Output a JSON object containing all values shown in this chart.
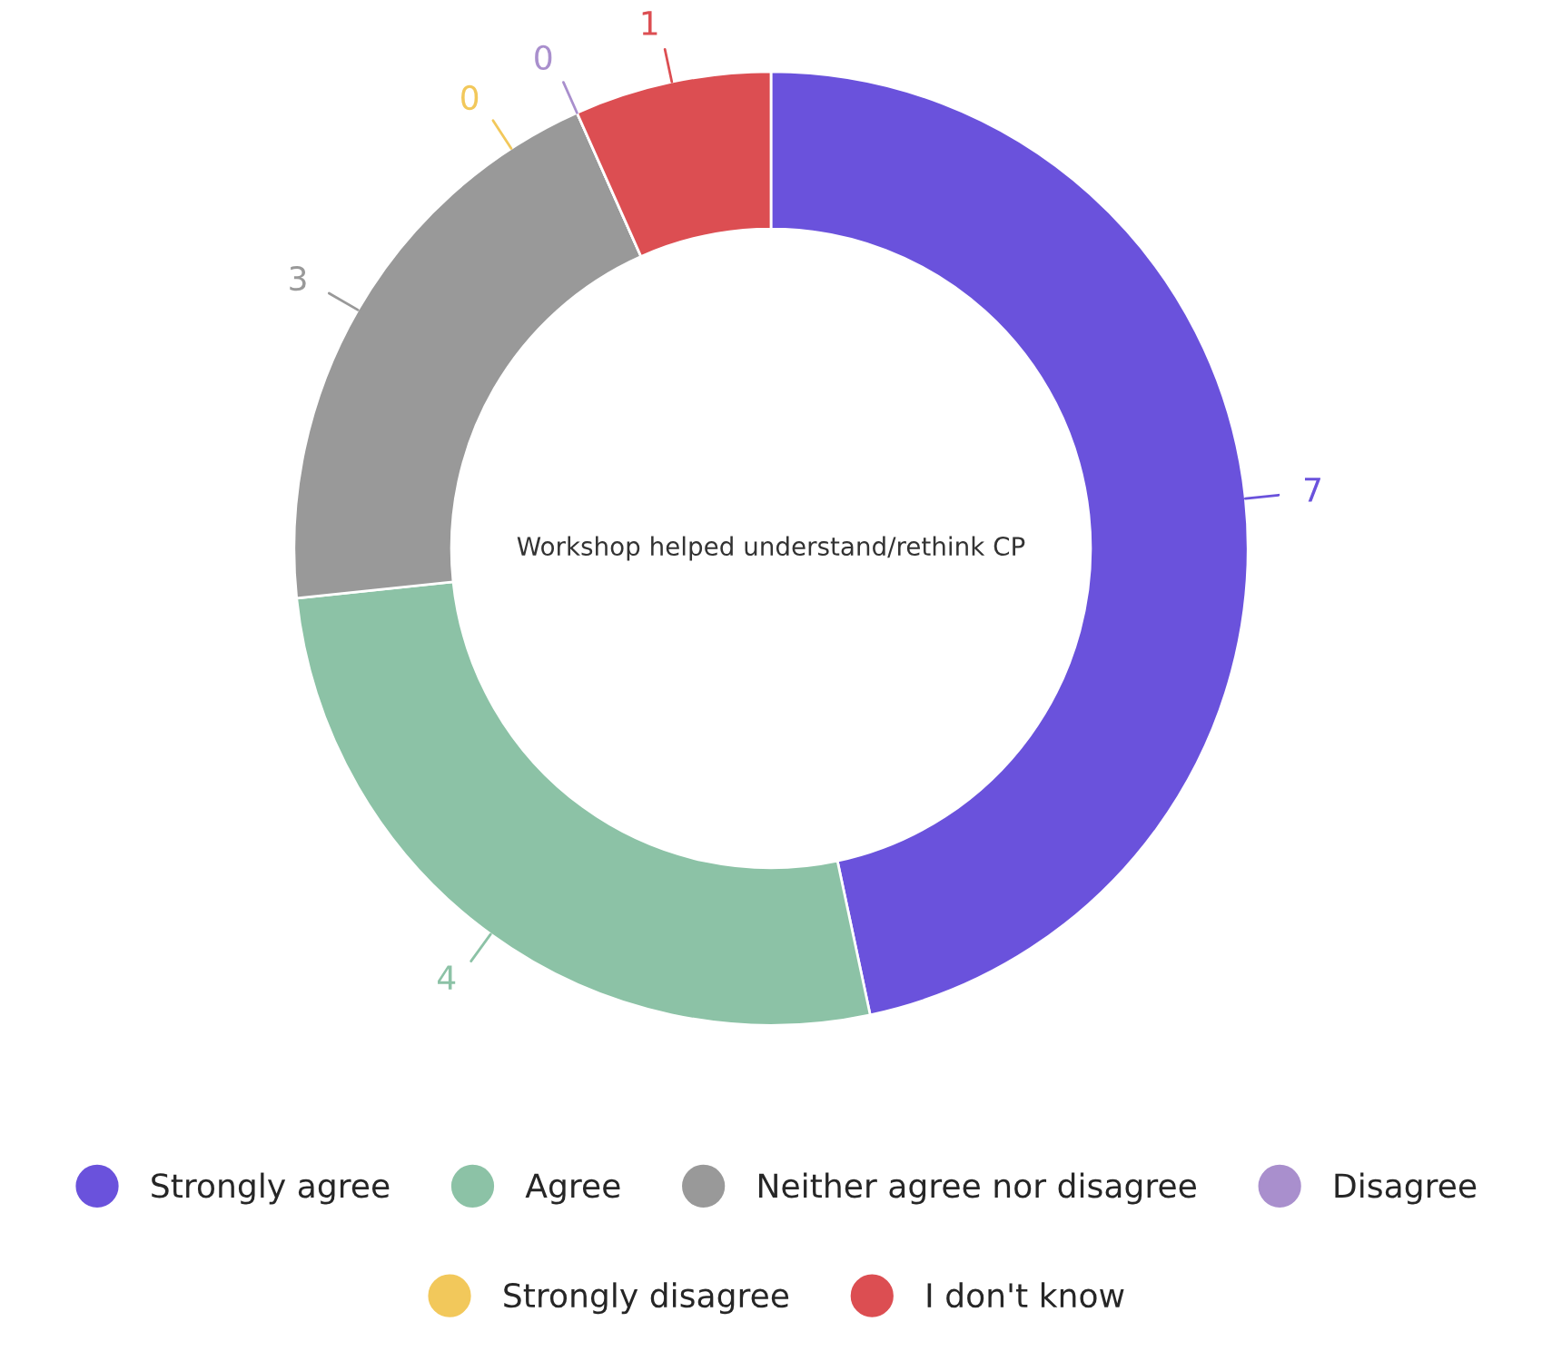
{
  "chart_data": {
    "type": "donut",
    "title": "Workshop helped understand/rethink CP",
    "categories": [
      "Strongly agree",
      "Agree",
      "Neither agree nor disagree",
      "Disagree",
      "Strongly disagree",
      "I don't know"
    ],
    "values": [
      7,
      4,
      3,
      0,
      0,
      1
    ],
    "colors": [
      "#6a52dc",
      "#8cc2a6",
      "#999999",
      "#a98fcd",
      "#f2c85b",
      "#dc4e52"
    ],
    "value_labels": [
      "7",
      "4",
      "3",
      "0",
      "0",
      "1"
    ],
    "legend": "bottom"
  }
}
